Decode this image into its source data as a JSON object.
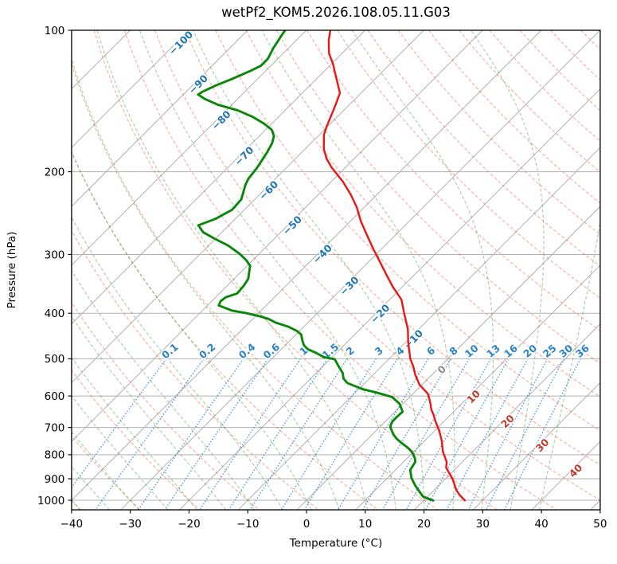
{
  "title": "wetPf2_KOM5.2026.108.05.11.G03",
  "axes": {
    "x_label": "Temperature (°C)",
    "y_label": "Pressure (hPa)",
    "x_ticks": [
      -40,
      -30,
      -20,
      -10,
      0,
      10,
      20,
      30,
      40,
      50
    ],
    "y_ticks": [
      100,
      200,
      300,
      400,
      500,
      600,
      700,
      800,
      900,
      1000
    ]
  },
  "chart_data": {
    "type": "line",
    "variant": "skew-t-log-p-sounding",
    "title": "wetPf2_KOM5.2026.108.05.11.G03",
    "xlabel": "Temperature (°C)",
    "ylabel": "Pressure (hPa)",
    "xlim_c": [
      -40,
      50
    ],
    "pressure_range_hpa": [
      100,
      1048
    ],
    "grid": true,
    "series": [
      {
        "name": "temperature",
        "color": "#eb1515",
        "points_p_t": [
          [
            100,
            -75.9
          ],
          [
            105,
            -74.5
          ],
          [
            112,
            -72.2
          ],
          [
            118,
            -69.7
          ],
          [
            126,
            -66.9
          ],
          [
            136,
            -63.6
          ],
          [
            145,
            -62.2
          ],
          [
            153,
            -61.1
          ],
          [
            160,
            -60.2
          ],
          [
            167,
            -59.2
          ],
          [
            179,
            -56.8
          ],
          [
            188,
            -54.6
          ],
          [
            196,
            -52.3
          ],
          [
            210,
            -48.0
          ],
          [
            224,
            -44.4
          ],
          [
            238,
            -41.3
          ],
          [
            255,
            -38.2
          ],
          [
            274,
            -34.6
          ],
          [
            293,
            -31.2
          ],
          [
            312,
            -27.9
          ],
          [
            331,
            -24.8
          ],
          [
            351,
            -21.7
          ],
          [
            374,
            -18.0
          ],
          [
            400,
            -15.2
          ],
          [
            432,
            -11.9
          ],
          [
            453,
            -10.2
          ],
          [
            462,
            -9.5
          ],
          [
            500,
            -6.4
          ],
          [
            519,
            -4.6
          ],
          [
            540,
            -2.9
          ],
          [
            568,
            -0.4
          ],
          [
            593,
            2.5
          ],
          [
            609,
            3.7
          ],
          [
            625,
            4.8
          ],
          [
            641,
            5.8
          ],
          [
            658,
            7.1
          ],
          [
            676,
            8.3
          ],
          [
            693,
            9.5
          ],
          [
            712,
            10.8
          ],
          [
            730,
            11.9
          ],
          [
            749,
            13.0
          ],
          [
            769,
            14.0
          ],
          [
            789,
            15.0
          ],
          [
            809,
            16.2
          ],
          [
            830,
            17.4
          ],
          [
            852,
            18.2
          ],
          [
            900,
            21.2
          ],
          [
            950,
            23.7
          ],
          [
            975,
            25.2
          ],
          [
            1001,
            27.0
          ]
        ]
      },
      {
        "name": "dewpoint",
        "color": "#0a860a",
        "points_p_t": [
          [
            100,
            -83.6
          ],
          [
            102,
            -83.4
          ],
          [
            109,
            -82.6
          ],
          [
            115,
            -81.7
          ],
          [
            119,
            -81.7
          ],
          [
            122,
            -82.6
          ],
          [
            127,
            -84.4
          ],
          [
            131,
            -86.0
          ],
          [
            135,
            -87.2
          ],
          [
            137,
            -87.5
          ],
          [
            140,
            -85.6
          ],
          [
            144,
            -82.4
          ],
          [
            148,
            -78.1
          ],
          [
            153,
            -74.3
          ],
          [
            158,
            -71.3
          ],
          [
            163,
            -68.9
          ],
          [
            168,
            -67.5
          ],
          [
            174,
            -66.6
          ],
          [
            182,
            -65.9
          ],
          [
            196,
            -65.0
          ],
          [
            207,
            -64.6
          ],
          [
            213,
            -64.1
          ],
          [
            229,
            -62.3
          ],
          [
            241,
            -62.1
          ],
          [
            252,
            -63.4
          ],
          [
            260,
            -65.2
          ],
          [
            269,
            -63.2
          ],
          [
            278,
            -60.0
          ],
          [
            287,
            -56.7
          ],
          [
            299,
            -53.3
          ],
          [
            309,
            -51.0
          ],
          [
            317,
            -49.5
          ],
          [
            338,
            -47.6
          ],
          [
            349,
            -47.2
          ],
          [
            363,
            -47.0
          ],
          [
            370,
            -48.3
          ],
          [
            377,
            -48.5
          ],
          [
            385,
            -48.1
          ],
          [
            395,
            -44.9
          ],
          [
            400,
            -42.0
          ],
          [
            406,
            -39.3
          ],
          [
            411,
            -37.4
          ],
          [
            419,
            -35.4
          ],
          [
            427,
            -32.7
          ],
          [
            436,
            -30.5
          ],
          [
            444,
            -29.1
          ],
          [
            456,
            -28.0
          ],
          [
            468,
            -26.8
          ],
          [
            477,
            -25.5
          ],
          [
            486,
            -23.4
          ],
          [
            496,
            -21.4
          ],
          [
            501,
            -19.2
          ],
          [
            519,
            -17.3
          ],
          [
            536,
            -15.5
          ],
          [
            551,
            -14.4
          ],
          [
            563,
            -13.0
          ],
          [
            580,
            -9.4
          ],
          [
            590,
            -6.4
          ],
          [
            603,
            -3.0
          ],
          [
            623,
            -0.6
          ],
          [
            640,
            0.7
          ],
          [
            648,
            1.3
          ],
          [
            665,
            1.2
          ],
          [
            678,
            1.2
          ],
          [
            691,
            1.5
          ],
          [
            700,
            1.9
          ],
          [
            713,
            2.8
          ],
          [
            727,
            3.8
          ],
          [
            741,
            5.0
          ],
          [
            755,
            6.4
          ],
          [
            770,
            8.0
          ],
          [
            784,
            9.3
          ],
          [
            799,
            10.4
          ],
          [
            814,
            11.3
          ],
          [
            829,
            12.0
          ],
          [
            862,
            12.5
          ],
          [
            897,
            14.1
          ],
          [
            932,
            16.1
          ],
          [
            982,
            19.2
          ],
          [
            1001,
            21.6
          ]
        ]
      }
    ],
    "isotherm_labels_c": [
      -100,
      -90,
      -80,
      -70,
      -60,
      -50,
      -40,
      -30,
      -20,
      -10,
      0,
      10,
      20,
      30,
      40
    ],
    "mixing_ratio_lines_g_kg": [
      0.1,
      0.2,
      0.4,
      0.6,
      1,
      1.5,
      2,
      3,
      4,
      6,
      8,
      10,
      13,
      16,
      20,
      25,
      30,
      36
    ],
    "isotherms_c": {
      "start": -150,
      "end": 50,
      "step": 10
    },
    "dry_adiabats_theta_c": {
      "start": -40,
      "end": 200,
      "step": 10
    },
    "moist_adiabats_t0_c": {
      "start": -40,
      "end": 40,
      "step": 5
    },
    "pressure_gridlines_hpa": [
      100,
      200,
      300,
      400,
      500,
      600,
      700,
      800,
      900,
      1000
    ]
  },
  "colors": {
    "temperature_line": "#eb1515",
    "dewpoint_line": "#0a860a",
    "grid": "#b1b1b1",
    "dry_adiabat": "rgba(246,98,74,0.5)",
    "moist_adiabat": "rgba(60,160,60,0.45)",
    "mixing_line": "#4394d6",
    "isotherm_label_cold": "#1f77b4",
    "isotherm_label_zero": "#8c8c8c",
    "isotherm_label_warm": "#c03a2e",
    "mixing_label": "#2b83c9",
    "frame": "#000000",
    "tick_text": "#000000"
  }
}
